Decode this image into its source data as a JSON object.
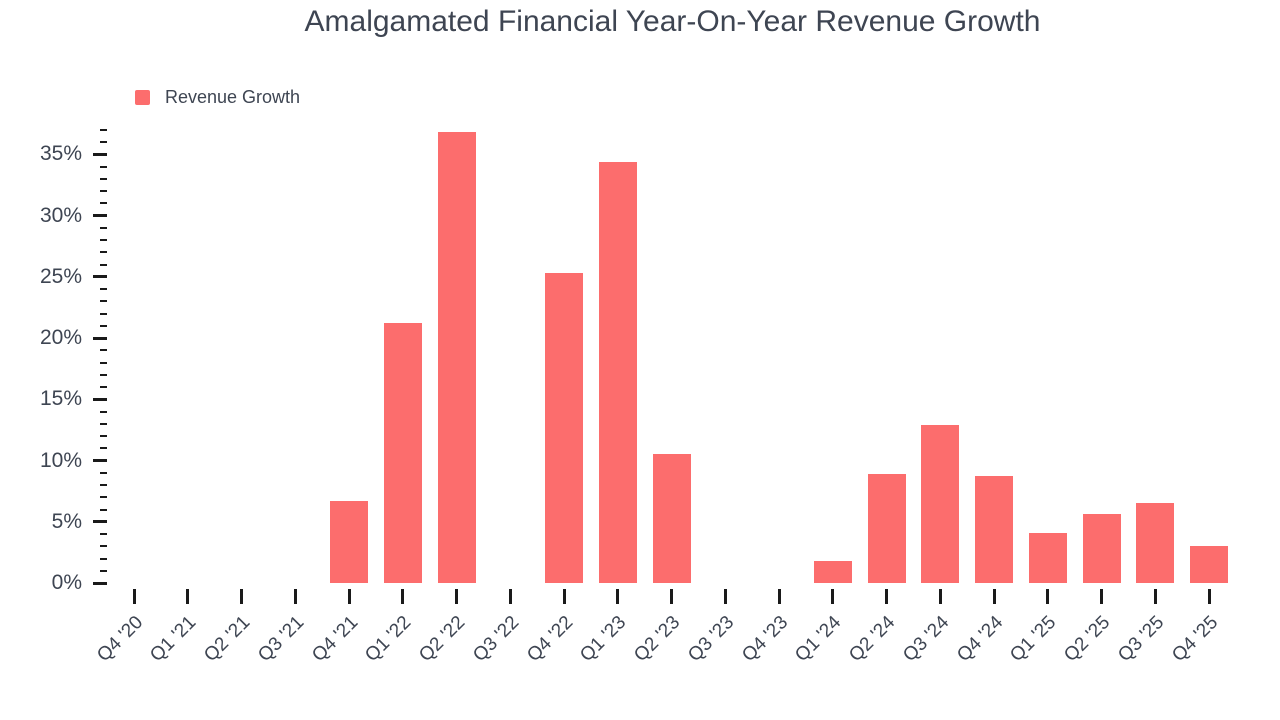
{
  "title": "Amalgamated Financial Year-On-Year Revenue Growth",
  "legend": {
    "label": "Revenue Growth"
  },
  "colors": {
    "bar": "#FC6D6D",
    "text": "#3E4552",
    "tick": "#1A1A1A",
    "background": "#FFFFFF"
  },
  "chart_data": {
    "type": "bar",
    "title": "Amalgamated Financial Year-On-Year Revenue Growth",
    "xlabel": "",
    "ylabel": "",
    "grid": false,
    "legend_position": "top-left",
    "series_name": "Revenue Growth",
    "categories": [
      "Q4 '20",
      "Q1 '21",
      "Q2 '21",
      "Q3 '21",
      "Q4 '21",
      "Q1 '22",
      "Q2 '22",
      "Q3 '22",
      "Q4 '22",
      "Q1 '23",
      "Q2 '23",
      "Q3 '23",
      "Q4 '23",
      "Q1 '24",
      "Q2 '24",
      "Q3 '24",
      "Q4 '24",
      "Q1 '25",
      "Q2 '25",
      "Q3 '25",
      "Q4 '25"
    ],
    "values": [
      null,
      null,
      null,
      null,
      6.7,
      21.2,
      36.8,
      null,
      25.3,
      34.4,
      10.5,
      null,
      null,
      1.8,
      8.9,
      12.9,
      8.7,
      4.1,
      5.6,
      6.5,
      3.0
    ],
    "unit": "%",
    "ylim": [
      0,
      37
    ],
    "y_axis": {
      "major_step": 5,
      "minor_step": 1,
      "max": 37,
      "tick_labels": [
        "0%",
        "5%",
        "10%",
        "15%",
        "20%",
        "25%",
        "30%",
        "35%"
      ]
    }
  }
}
